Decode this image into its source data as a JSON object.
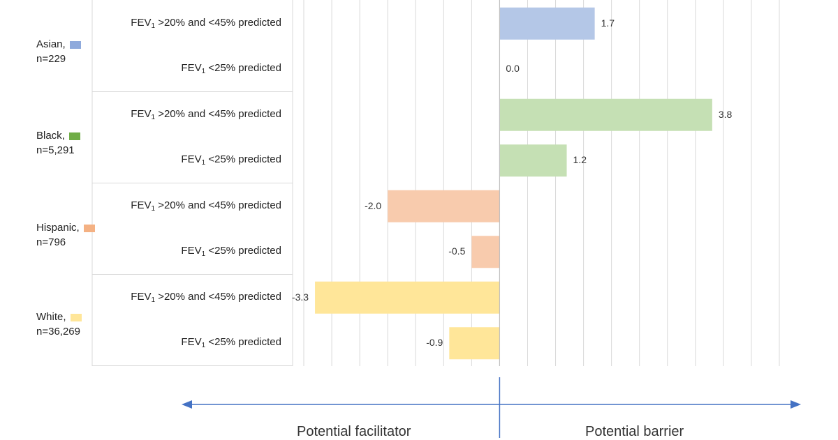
{
  "chart_data": {
    "type": "bar",
    "orientation": "horizontal",
    "title": "",
    "xlim": [
      -3.7,
      5.1
    ],
    "x_gridline_step": 0.5,
    "groups": [
      {
        "name": "Asian,",
        "n": "n=229",
        "color": "#b4c7e7",
        "rows": [
          {
            "label_main": "FEV",
            "label_sub": "1",
            "label_rest": " >20% and <45% predicted",
            "value": 1.7,
            "display": "1.7"
          },
          {
            "label_main": "FEV",
            "label_sub": "1",
            "label_rest": " <25% predicted",
            "value": 0.0,
            "display": "0.0"
          }
        ]
      },
      {
        "name": "Black,",
        "n": "n=5,291",
        "color": "#c5e0b4",
        "rows": [
          {
            "label_main": "FEV",
            "label_sub": "1",
            "label_rest": " >20% and <45% predicted",
            "value": 3.8,
            "display": "3.8"
          },
          {
            "label_main": "FEV",
            "label_sub": "1",
            "label_rest": " <25% predicted",
            "value": 1.2,
            "display": "1.2"
          }
        ]
      },
      {
        "name": "Hispanic,",
        "n": "n=796",
        "color": "#f8cbad",
        "rows": [
          {
            "label_main": "FEV",
            "label_sub": "1",
            "label_rest": " >20% and <45% predicted",
            "value": -2.0,
            "display": "-2.0"
          },
          {
            "label_main": "FEV",
            "label_sub": "1",
            "label_rest": " <25% predicted",
            "value": -0.5,
            "display": "-0.5"
          }
        ]
      },
      {
        "name": "White,",
        "n": "n=36,269",
        "color": "#ffe699",
        "rows": [
          {
            "label_main": "FEV",
            "label_sub": "1",
            "label_rest": " >20% and <45% predicted",
            "value": -3.3,
            "display": "-3.3"
          },
          {
            "label_main": "FEV",
            "label_sub": "1",
            "label_rest": " <25% predicted",
            "value": -0.9,
            "display": "-0.9"
          }
        ]
      }
    ],
    "annotations": {
      "left_direction": "Potential facilitator",
      "right_direction": "Potential barrier"
    },
    "swatch_colors": {
      "Asian": "#8faadc",
      "Black": "#70ad47",
      "Hispanic": "#f4b183",
      "White": "#ffe699"
    },
    "arrow_color": "#4472c4",
    "grid_color": "#d9d9d9"
  }
}
